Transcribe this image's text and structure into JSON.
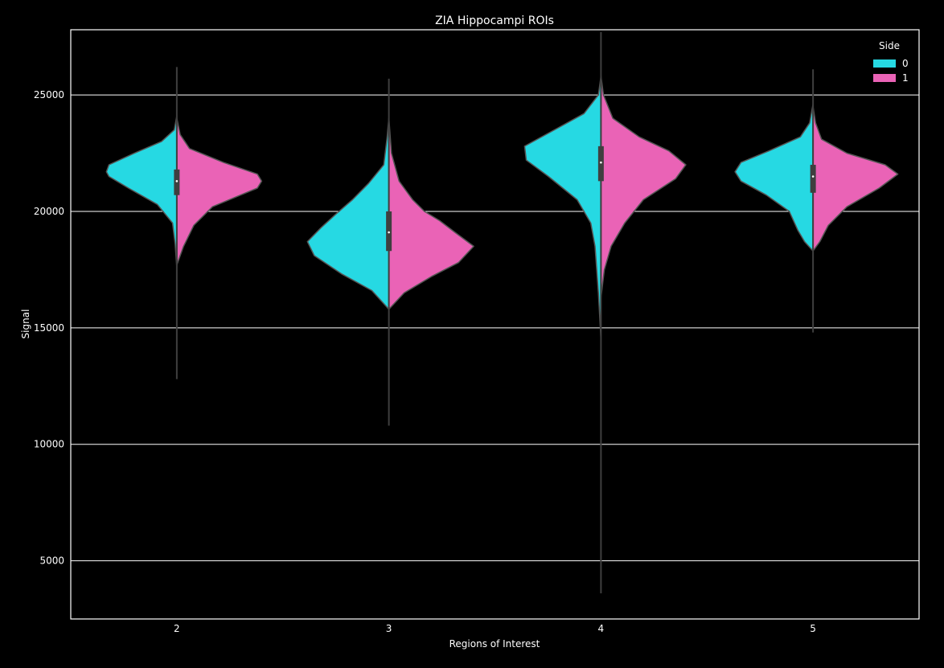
{
  "colors": {
    "figure_bg": "#000000",
    "axes_bg": "#000000",
    "grid": "#ffffff",
    "violin_outline": "#555555",
    "box": "#3f3f3f",
    "median": "#ffffff"
  },
  "chart_data": {
    "type": "violin",
    "title": "ZIA Hippocampi ROIs",
    "xlabel": "Regions of Interest",
    "ylabel": "Signal",
    "categories": [
      "2",
      "3",
      "4",
      "5"
    ],
    "ylim": [
      2500,
      27800
    ],
    "yticks": [
      5000,
      10000,
      15000,
      20000,
      25000
    ],
    "grid": "y",
    "legend": {
      "title": "Side",
      "placement": "top-right",
      "entries": [
        {
          "label": "0",
          "color": "#26d9e3"
        },
        {
          "label": "1",
          "color": "#ea63b6"
        }
      ]
    },
    "violins": [
      {
        "category": "2",
        "whisker": [
          12800,
          26200
        ],
        "box": [
          20700,
          21800
        ],
        "median": 21300,
        "left_profile": [
          [
            17600,
            0
          ],
          [
            18600,
            0.02
          ],
          [
            19500,
            0.05
          ],
          [
            20300,
            0.23
          ],
          [
            21000,
            0.57
          ],
          [
            21500,
            0.8
          ],
          [
            21700,
            0.83
          ],
          [
            22000,
            0.8
          ],
          [
            22500,
            0.5
          ],
          [
            23000,
            0.18
          ],
          [
            23500,
            0.03
          ],
          [
            24100,
            0
          ]
        ],
        "right_profile": [
          [
            17700,
            0
          ],
          [
            18500,
            0.08
          ],
          [
            19400,
            0.2
          ],
          [
            20200,
            0.42
          ],
          [
            20700,
            0.75
          ],
          [
            21000,
            0.95
          ],
          [
            21300,
            1.0
          ],
          [
            21600,
            0.95
          ],
          [
            22100,
            0.55
          ],
          [
            22700,
            0.15
          ],
          [
            23300,
            0.04
          ],
          [
            24000,
            0
          ]
        ]
      },
      {
        "category": "3",
        "whisker": [
          10800,
          25700
        ],
        "box": [
          18300,
          20000
        ],
        "median": 19100,
        "left_profile": [
          [
            15800,
            0
          ],
          [
            16600,
            0.2
          ],
          [
            17300,
            0.55
          ],
          [
            18100,
            0.88
          ],
          [
            18700,
            0.96
          ],
          [
            19300,
            0.8
          ],
          [
            19900,
            0.62
          ],
          [
            20500,
            0.43
          ],
          [
            21200,
            0.24
          ],
          [
            22000,
            0.06
          ],
          [
            23200,
            0.02
          ],
          [
            24000,
            0
          ]
        ],
        "right_profile": [
          [
            15800,
            0
          ],
          [
            16500,
            0.18
          ],
          [
            17200,
            0.5
          ],
          [
            17800,
            0.82
          ],
          [
            18500,
            1.0
          ],
          [
            19100,
            0.78
          ],
          [
            19600,
            0.6
          ],
          [
            20000,
            0.42
          ],
          [
            20500,
            0.28
          ],
          [
            21300,
            0.12
          ],
          [
            22500,
            0.03
          ],
          [
            24000,
            0
          ]
        ]
      },
      {
        "category": "4",
        "whisker": [
          3600,
          27700
        ],
        "box": [
          21300,
          22800
        ],
        "median": 22100,
        "left_profile": [
          [
            14500,
            0
          ],
          [
            16500,
            0.03
          ],
          [
            18500,
            0.07
          ],
          [
            19500,
            0.12
          ],
          [
            20500,
            0.28
          ],
          [
            21500,
            0.62
          ],
          [
            22200,
            0.88
          ],
          [
            22800,
            0.9
          ],
          [
            23500,
            0.55
          ],
          [
            24200,
            0.2
          ],
          [
            25000,
            0.03
          ],
          [
            25800,
            0
          ]
        ],
        "right_profile": [
          [
            16300,
            0
          ],
          [
            17500,
            0.04
          ],
          [
            18500,
            0.12
          ],
          [
            19500,
            0.28
          ],
          [
            20500,
            0.5
          ],
          [
            21400,
            0.88
          ],
          [
            22000,
            1.0
          ],
          [
            22600,
            0.8
          ],
          [
            23200,
            0.45
          ],
          [
            24000,
            0.14
          ],
          [
            25000,
            0.03
          ],
          [
            25800,
            0
          ]
        ]
      },
      {
        "category": "5",
        "whisker": [
          14800,
          26100
        ],
        "box": [
          20800,
          22000
        ],
        "median": 21500,
        "left_profile": [
          [
            18300,
            0
          ],
          [
            18700,
            0.1
          ],
          [
            19200,
            0.18
          ],
          [
            20000,
            0.28
          ],
          [
            20700,
            0.55
          ],
          [
            21300,
            0.85
          ],
          [
            21700,
            0.92
          ],
          [
            22100,
            0.85
          ],
          [
            22600,
            0.52
          ],
          [
            23200,
            0.15
          ],
          [
            23800,
            0.04
          ],
          [
            24600,
            0
          ]
        ],
        "right_profile": [
          [
            18300,
            0
          ],
          [
            18700,
            0.08
          ],
          [
            19400,
            0.18
          ],
          [
            20200,
            0.4
          ],
          [
            21000,
            0.78
          ],
          [
            21600,
            1.0
          ],
          [
            22000,
            0.85
          ],
          [
            22500,
            0.4
          ],
          [
            23100,
            0.1
          ],
          [
            23800,
            0.03
          ],
          [
            24500,
            0
          ]
        ]
      }
    ]
  }
}
